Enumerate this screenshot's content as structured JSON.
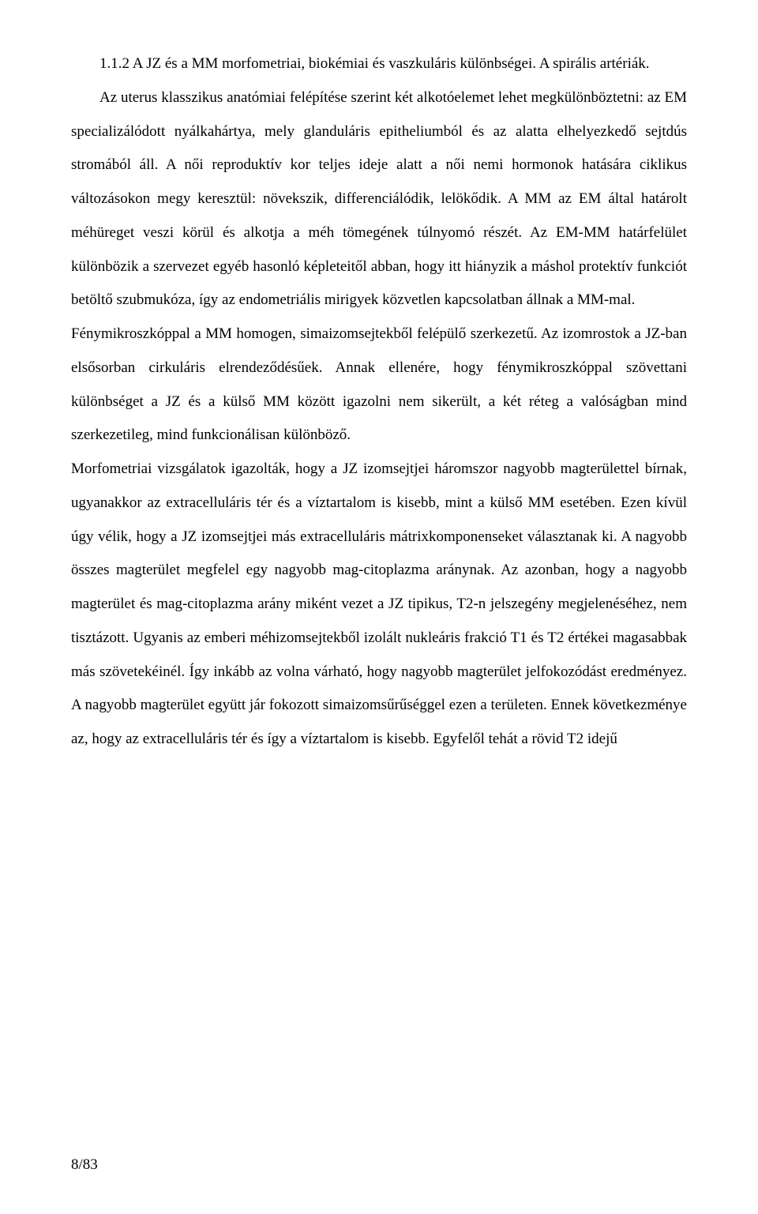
{
  "heading": "1.1.2 A JZ és a MM morfometriai, biokémiai és vaszkuláris különbségei. A spirális artériák.",
  "para1": "Az uterus klasszikus anatómiai felépítése szerint két alkotóelemet lehet megkülönböztetni: az EM specializálódott nyálkahártya, mely glanduláris epitheliumból és az alatta elhelyezkedő sejtdús stromából áll. A női reproduktív kor teljes ideje alatt a női nemi hormonok hatására ciklikus változásokon megy keresztül: növekszik, differenciálódik, lelökődik. A MM az EM által határolt méhüreget veszi körül és alkotja a méh tömegének túlnyomó részét. Az EM-MM határfelület különbözik a szervezet egyéb hasonló képleteitől abban, hogy itt hiányzik a máshol protektív funkciót betöltő szubmukóza, így az endometriális mirigyek közvetlen kapcsolatban állnak a MM-mal.",
  "para2": "Fénymikroszkóppal a MM homogen, simaizomsejtekből felépülő szerkezetű. Az izomrostok a JZ-ban elsősorban cirkuláris elrendeződésűek. Annak ellenére, hogy fénymikroszkóppal szövettani különbséget a JZ és a külső MM között igazolni nem sikerült, a két réteg a valóságban mind szerkezetileg, mind funkcionálisan különböző.",
  "para3": "Morfometriai vizsgálatok igazolták, hogy a JZ izomsejtjei háromszor nagyobb magterülettel bírnak, ugyanakkor az extracelluláris tér és a víztartalom is kisebb, mint a külső MM esetében. Ezen kívül úgy vélik, hogy a JZ izomsejtjei más extracelluláris mátrixkomponenseket választanak ki. A nagyobb összes magterület megfelel egy nagyobb mag-citoplazma aránynak. Az azonban, hogy a nagyobb magterület és mag-citoplazma arány miként vezet a JZ tipikus, T2-n jelszegény megjelenéséhez, nem tisztázott. Ugyanis az emberi méhizomsejtekből izolált nukleáris frakció T1 és T2 értékei magasabbak más szövetekéinél. Így inkább az volna várható, hogy nagyobb magterület jelfokozódást eredményez. A nagyobb magterület együtt jár fokozott simaizomsűrűséggel ezen a területen. Ennek következménye az, hogy az extracelluláris tér és így a víztartalom is kisebb. Egyfelől tehát a rövid T2 idejű",
  "page_number": "8/83"
}
